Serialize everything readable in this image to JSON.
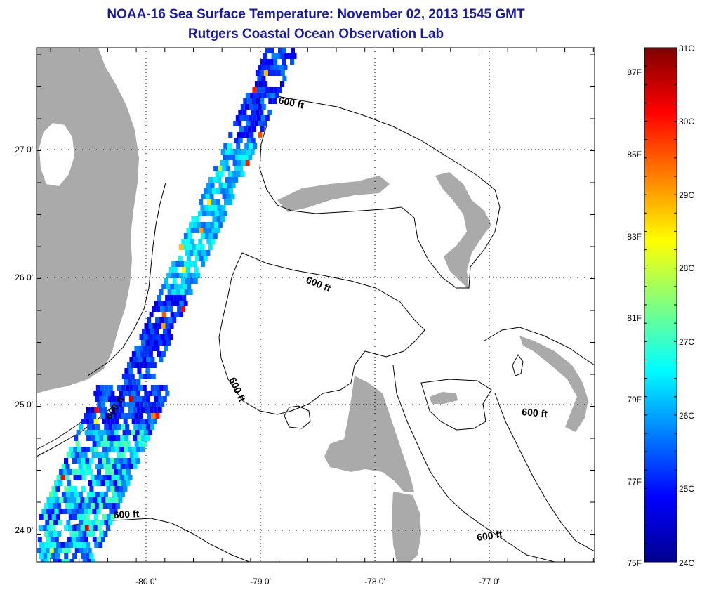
{
  "title": {
    "line1": "NOAA-16 Sea Surface Temperature:  November 02, 2013 1545 GMT",
    "line2": "Rutgers Coastal Ocean Observation Lab"
  },
  "map": {
    "lat_labels": [
      "27 0'",
      "26 0'",
      "25 0'",
      "24 0'"
    ],
    "lon_labels": [
      "-80 0'",
      "-79 0'",
      "-78 0'",
      "-77 0'"
    ],
    "contour_labels": [
      "600 ft",
      "600 ft",
      "600 ft",
      "600 ft",
      "600 ft",
      "600 ft",
      "600 ft"
    ],
    "colors": {
      "land": "#aaaaaa",
      "background": "#ffffff",
      "contour": "#000000"
    }
  },
  "colorbar": {
    "celsius_labels": [
      "31C",
      "30C",
      "29C",
      "28C",
      "27C",
      "26C",
      "25C",
      "24C"
    ],
    "fahrenheit_labels": [
      "87F",
      "85F",
      "83F",
      "81F",
      "79F",
      "77F",
      "75F"
    ],
    "colormap": "jet",
    "range_celsius": [
      24,
      31
    ]
  }
}
